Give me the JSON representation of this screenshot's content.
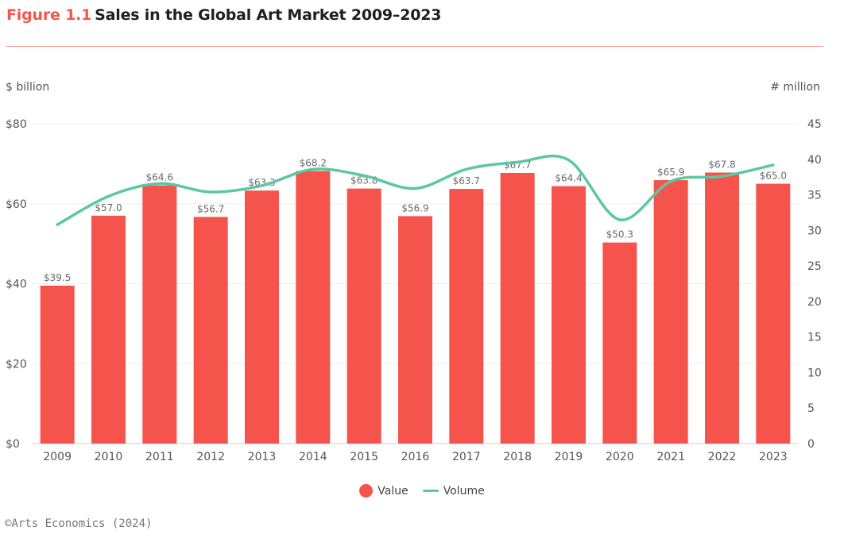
{
  "header": {
    "figure_label": "Figure 1.1",
    "title": "Sales in the Global Art Market 2009–2023"
  },
  "source": "©Arts Economics (2024)",
  "colors": {
    "bar": "#f5544c",
    "line": "#5cc8a1",
    "accent": "#f2564d",
    "grid": "#eeeeee",
    "axis_text": "#555555",
    "label_text": "#6b6b6b"
  },
  "chart_data": {
    "type": "bar",
    "categories": [
      "2009",
      "2010",
      "2011",
      "2012",
      "2013",
      "2014",
      "2015",
      "2016",
      "2017",
      "2018",
      "2019",
      "2020",
      "2021",
      "2022",
      "2023"
    ],
    "series": [
      {
        "name": "Value",
        "type": "bar",
        "axis": "left",
        "values": [
          39.5,
          57.0,
          64.6,
          56.7,
          63.3,
          68.2,
          63.8,
          56.9,
          63.7,
          67.7,
          64.4,
          50.3,
          65.9,
          67.8,
          65.0
        ],
        "labels": [
          "$39.5",
          "$57.0",
          "$64.6",
          "$56.7",
          "$63.3",
          "$68.2",
          "$63.8",
          "$56.9",
          "$63.7",
          "$67.7",
          "$64.4",
          "$50.3",
          "$65.9",
          "$67.8",
          "$65.0"
        ]
      },
      {
        "name": "Volume",
        "type": "line",
        "axis": "right",
        "values": [
          30.8,
          34.8,
          36.6,
          35.4,
          36.3,
          38.6,
          37.7,
          35.9,
          38.6,
          39.6,
          39.9,
          31.5,
          36.9,
          37.6,
          39.2
        ]
      }
    ],
    "y_left": {
      "label": "$ billion",
      "range": [
        0,
        80
      ],
      "ticks": [
        0,
        20,
        40,
        60,
        80
      ],
      "tick_labels": [
        "$0",
        "$20",
        "$40",
        "$60",
        "$80"
      ]
    },
    "y_right": {
      "label": "# million",
      "range": [
        0,
        45
      ],
      "ticks": [
        0,
        5,
        10,
        15,
        20,
        25,
        30,
        35,
        40,
        45
      ],
      "tick_labels": [
        "0",
        "5",
        "10",
        "15",
        "20",
        "25",
        "30",
        "35",
        "40",
        "45"
      ]
    },
    "grid": true,
    "legend_position": "bottom-center"
  }
}
